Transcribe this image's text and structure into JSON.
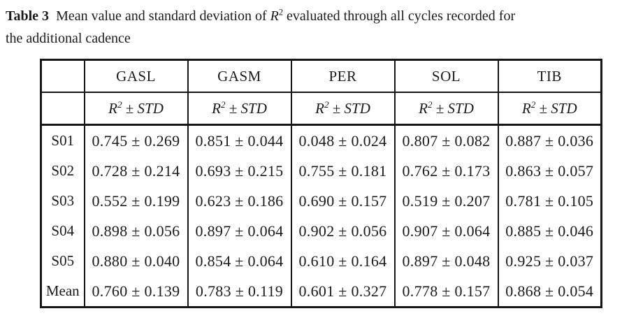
{
  "caption": {
    "label": "Table 3",
    "line1_before_math": "Mean value and standard deviation of ",
    "math_base": "R",
    "math_sup": "2",
    "line1_after_math": " evaluated through all cycles recorded for",
    "line2": "the additional cadence"
  },
  "table": {
    "columns": [
      "GASL",
      "GASM",
      "PER",
      "SOL",
      "TIB"
    ],
    "subheader": {
      "base": "R",
      "sup": "2",
      "rest": " ± STD"
    },
    "rows": [
      {
        "label": "S01",
        "values": [
          "0.745 ± 0.269",
          "0.851 ± 0.044",
          "0.048 ± 0.024",
          "0.807 ± 0.082",
          "0.887 ± 0.036"
        ]
      },
      {
        "label": "S02",
        "values": [
          "0.728 ± 0.214",
          "0.693 ± 0.215",
          "0.755 ± 0.181",
          "0.762 ± 0.173",
          "0.863 ± 0.057"
        ]
      },
      {
        "label": "S03",
        "values": [
          "0.552 ± 0.199",
          "0.623 ± 0.186",
          "0.690 ± 0.157",
          "0.519 ± 0.207",
          "0.781 ± 0.105"
        ]
      },
      {
        "label": "S04",
        "values": [
          "0.898 ± 0.056",
          "0.897 ± 0.064",
          "0.902 ± 0.056",
          "0.907 ± 0.064",
          "0.885 ± 0.046"
        ]
      },
      {
        "label": "S05",
        "values": [
          "0.880 ± 0.040",
          "0.854 ± 0.064",
          "0.610 ± 0.164",
          "0.897 ± 0.048",
          "0.925 ± 0.037"
        ]
      },
      {
        "label": "Mean",
        "values": [
          "0.760 ± 0.139",
          "0.783 ± 0.119",
          "0.601 ± 0.327",
          "0.778 ± 0.157",
          "0.868 ± 0.054"
        ]
      }
    ]
  },
  "colors": {
    "text": "#1b1b1b",
    "border": "#161616",
    "background": "#ffffff"
  }
}
